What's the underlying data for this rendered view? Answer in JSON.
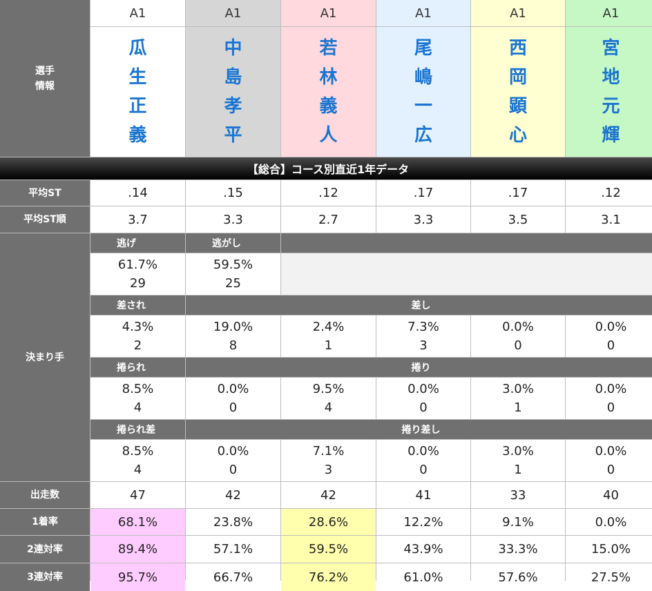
{
  "labels": {
    "player_info": "選手\n情報",
    "avg_st": "平均ST",
    "avg_st_rank": "平均ST順",
    "kimarite": "決まり手",
    "starts": "出走数",
    "win1": "1着率",
    "win2": "2連対率",
    "win3": "3連対率"
  },
  "banner": "【総合】コース別直近1年データ",
  "players": [
    {
      "grade": "A1",
      "name": [
        "瓜",
        "生",
        "正",
        "義"
      ]
    },
    {
      "grade": "A1",
      "name": [
        "中",
        "島",
        "孝",
        "平"
      ]
    },
    {
      "grade": "A1",
      "name": [
        "若",
        "林",
        "義",
        "人"
      ]
    },
    {
      "grade": "A1",
      "name": [
        "尾",
        "嶋",
        "一",
        "広"
      ]
    },
    {
      "grade": "A1",
      "name": [
        "西",
        "岡",
        "顕",
        "心"
      ]
    },
    {
      "grade": "A1",
      "name": [
        "宮",
        "地",
        "元",
        "輝"
      ]
    }
  ],
  "avg_st": [
    ".14",
    ".15",
    ".12",
    ".17",
    ".17",
    ".12"
  ],
  "avg_st_rank": [
    "3.7",
    "3.3",
    "2.7",
    "3.3",
    "3.5",
    "3.1"
  ],
  "kimarite": {
    "nige": {
      "label": "逃げ",
      "pct": "61.7%",
      "count": "29"
    },
    "nigashi": {
      "label": "逃がし",
      "pct": "59.5%",
      "count": "25"
    },
    "sasare": {
      "label": "差され",
      "pct": "4.3%",
      "count": "2"
    },
    "sashi": {
      "label": "差し",
      "values": [
        [
          "19.0%",
          "8"
        ],
        [
          "2.4%",
          "1"
        ],
        [
          "7.3%",
          "3"
        ],
        [
          "0.0%",
          "0"
        ],
        [
          "0.0%",
          "0"
        ]
      ]
    },
    "makurare": {
      "label": "捲られ",
      "pct": "8.5%",
      "count": "4"
    },
    "makuri": {
      "label": "捲り",
      "values": [
        [
          "0.0%",
          "0"
        ],
        [
          "9.5%",
          "4"
        ],
        [
          "0.0%",
          "0"
        ],
        [
          "3.0%",
          "1"
        ],
        [
          "0.0%",
          "0"
        ]
      ]
    },
    "makurare_sashi": {
      "label": "捲られ差",
      "pct": "8.5%",
      "count": "4"
    },
    "makuri_sashi": {
      "label": "捲り差し",
      "values": [
        [
          "0.0%",
          "0"
        ],
        [
          "7.1%",
          "3"
        ],
        [
          "0.0%",
          "0"
        ],
        [
          "3.0%",
          "1"
        ],
        [
          "0.0%",
          "0"
        ]
      ]
    }
  },
  "starts": [
    "47",
    "42",
    "42",
    "41",
    "33",
    "40"
  ],
  "win1": [
    "68.1%",
    "23.8%",
    "28.6%",
    "12.2%",
    "9.1%",
    "0.0%"
  ],
  "win2": [
    "89.4%",
    "57.1%",
    "59.5%",
    "43.9%",
    "33.3%",
    "15.0%"
  ],
  "win3": [
    "95.7%",
    "66.7%",
    "76.2%",
    "61.0%",
    "57.6%",
    "27.5%"
  ],
  "colors": {
    "lane_backgrounds": [
      "#ffffff",
      "#d6d6d6",
      "#ffd9dd",
      "#e3f1ff",
      "#ffffd2",
      "#c6f8c6"
    ],
    "name_text": "#1a75d2",
    "highlight_top": "#ffccff",
    "highlight_second": "#ffffad"
  }
}
